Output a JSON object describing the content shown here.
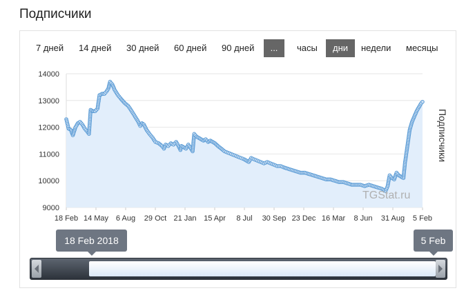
{
  "header": {
    "title": "Подписчики"
  },
  "toolbar": {
    "periods": [
      "7 дней",
      "14 дней",
      "30 дней",
      "60 дней",
      "90 дней",
      "..."
    ],
    "units": [
      "часы",
      "дни",
      "недели",
      "месяцы"
    ],
    "active_unit": "дни"
  },
  "watermark": "TGStat.ru",
  "range_selector": {
    "start_label": "18 Feb 2018",
    "end_label": "5 Feb"
  },
  "chart_data": {
    "type": "area",
    "ylabel": "Подписчики",
    "ylim": [
      9000,
      14000
    ],
    "y_ticks": [
      "14000",
      "13000",
      "12000",
      "11000",
      "10000",
      "9000"
    ],
    "x_ticks": [
      "18 Feb",
      "14 May",
      "6 Aug",
      "29 Oct",
      "21 Jan",
      "15 Apr",
      "8 Jul",
      "30 Sep",
      "23 Dec",
      "16 Mar",
      "8 Jun",
      "31 Aug",
      "5 Feb"
    ],
    "grid": true,
    "series": [
      {
        "color": "#5a9bd5",
        "fill": "#e2eefb",
        "points": [
          [
            "2018-02-18",
            12300
          ],
          [
            "2018-02-25",
            11950
          ],
          [
            "2018-03-04",
            11900
          ],
          [
            "2018-03-10",
            11700
          ],
          [
            "2018-03-18",
            12000
          ],
          [
            "2018-03-25",
            12150
          ],
          [
            "2018-04-01",
            12200
          ],
          [
            "2018-04-08",
            12100
          ],
          [
            "2018-04-15",
            11950
          ],
          [
            "2018-04-22",
            11850
          ],
          [
            "2018-04-28",
            11750
          ],
          [
            "2018-05-03",
            12650
          ],
          [
            "2018-05-10",
            12600
          ],
          [
            "2018-05-17",
            12600
          ],
          [
            "2018-05-24",
            12700
          ],
          [
            "2018-05-30",
            13200
          ],
          [
            "2018-06-07",
            13250
          ],
          [
            "2018-06-14",
            13250
          ],
          [
            "2018-06-21",
            13350
          ],
          [
            "2018-06-26",
            13450
          ],
          [
            "2018-07-01",
            13700
          ],
          [
            "2018-07-08",
            13600
          ],
          [
            "2018-07-15",
            13400
          ],
          [
            "2018-07-25",
            13200
          ],
          [
            "2018-08-04",
            13050
          ],
          [
            "2018-08-15",
            12900
          ],
          [
            "2018-08-25",
            12800
          ],
          [
            "2018-09-05",
            12600
          ],
          [
            "2018-09-15",
            12400
          ],
          [
            "2018-09-25",
            12200
          ],
          [
            "2018-10-01",
            12050
          ],
          [
            "2018-10-06",
            12150
          ],
          [
            "2018-10-12",
            12100
          ],
          [
            "2018-10-20",
            11900
          ],
          [
            "2018-10-29",
            11750
          ],
          [
            "2018-11-08",
            11600
          ],
          [
            "2018-11-16",
            11450
          ],
          [
            "2018-11-26",
            11400
          ],
          [
            "2018-12-06",
            11300
          ],
          [
            "2018-12-12",
            11200
          ],
          [
            "2018-12-17",
            11350
          ],
          [
            "2018-12-25",
            11300
          ],
          [
            "2019-01-02",
            11400
          ],
          [
            "2019-01-10",
            11350
          ],
          [
            "2019-01-18",
            11450
          ],
          [
            "2019-01-25",
            11300
          ],
          [
            "2019-01-31",
            11150
          ],
          [
            "2019-02-03",
            11300
          ],
          [
            "2019-02-10",
            11250
          ],
          [
            "2019-02-17",
            11200
          ],
          [
            "2019-02-24",
            11350
          ],
          [
            "2019-03-04",
            11200
          ],
          [
            "2019-03-09",
            11100
          ],
          [
            "2019-03-14",
            11750
          ],
          [
            "2019-03-21",
            11650
          ],
          [
            "2019-03-28",
            11600
          ],
          [
            "2019-04-04",
            11550
          ],
          [
            "2019-04-11",
            11500
          ],
          [
            "2019-04-18",
            11550
          ],
          [
            "2019-04-25",
            11450
          ],
          [
            "2019-05-02",
            11500
          ],
          [
            "2019-05-09",
            11450
          ],
          [
            "2019-05-16",
            11400
          ],
          [
            "2019-05-25",
            11300
          ],
          [
            "2019-06-04",
            11200
          ],
          [
            "2019-06-14",
            11100
          ],
          [
            "2019-06-24",
            11050
          ],
          [
            "2019-07-04",
            11000
          ],
          [
            "2019-07-14",
            10950
          ],
          [
            "2019-07-24",
            10900
          ],
          [
            "2019-08-03",
            10850
          ],
          [
            "2019-08-13",
            10800
          ],
          [
            "2019-08-20",
            10750
          ],
          [
            "2019-08-27",
            10700
          ],
          [
            "2019-09-03",
            10850
          ],
          [
            "2019-09-12",
            10800
          ],
          [
            "2019-09-22",
            10750
          ],
          [
            "2019-10-02",
            10700
          ],
          [
            "2019-10-12",
            10650
          ],
          [
            "2019-10-22",
            10700
          ],
          [
            "2019-11-01",
            10650
          ],
          [
            "2019-11-11",
            10600
          ],
          [
            "2019-11-21",
            10550
          ],
          [
            "2019-12-01",
            10550
          ],
          [
            "2019-12-11",
            10500
          ],
          [
            "2019-12-23",
            10450
          ],
          [
            "2020-01-05",
            10400
          ],
          [
            "2020-01-18",
            10350
          ],
          [
            "2020-01-31",
            10300
          ],
          [
            "2020-02-13",
            10300
          ],
          [
            "2020-02-26",
            10250
          ],
          [
            "2020-03-10",
            10200
          ],
          [
            "2020-03-23",
            10150
          ],
          [
            "2020-04-05",
            10100
          ],
          [
            "2020-04-18",
            10050
          ],
          [
            "2020-05-01",
            10050
          ],
          [
            "2020-05-14",
            10000
          ],
          [
            "2020-05-27",
            9950
          ],
          [
            "2020-06-09",
            9950
          ],
          [
            "2020-06-22",
            9900
          ],
          [
            "2020-07-05",
            9850
          ],
          [
            "2020-07-18",
            9850
          ],
          [
            "2020-07-31",
            9850
          ],
          [
            "2020-08-13",
            9800
          ],
          [
            "2020-08-26",
            9850
          ],
          [
            "2020-09-08",
            9800
          ],
          [
            "2020-09-21",
            9750
          ],
          [
            "2020-10-04",
            9700
          ],
          [
            "2020-10-16",
            9620
          ],
          [
            "2020-10-22",
            9800
          ],
          [
            "2020-10-28",
            10200
          ],
          [
            "2020-11-04",
            10100
          ],
          [
            "2020-11-11",
            10050
          ],
          [
            "2020-11-18",
            10300
          ],
          [
            "2020-11-25",
            10200
          ],
          [
            "2020-12-02",
            10150
          ],
          [
            "2020-12-09",
            10100
          ],
          [
            "2020-12-14",
            10700
          ],
          [
            "2020-12-21",
            11300
          ],
          [
            "2020-12-28",
            11900
          ],
          [
            "2021-01-04",
            12200
          ],
          [
            "2021-01-11",
            12400
          ],
          [
            "2021-01-18",
            12600
          ],
          [
            "2021-01-25",
            12750
          ],
          [
            "2021-02-01",
            12900
          ],
          [
            "2021-02-05",
            12950
          ]
        ]
      }
    ]
  }
}
